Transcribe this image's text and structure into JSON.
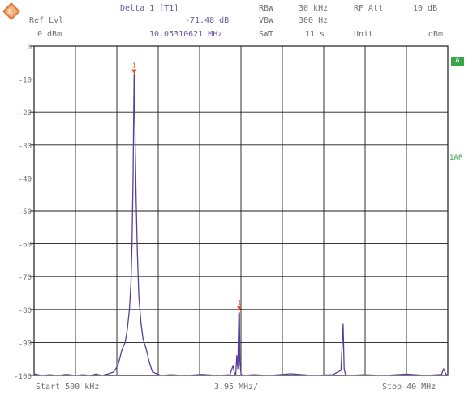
{
  "header": {
    "ref_lvl_label": "Ref Lvl",
    "ref_lvl_value": "0 dBm",
    "marker_title": "Delta 1 [T1]",
    "marker_level": "-71.48 dB",
    "marker_freq": "10.05310621 MHz",
    "rbw_label": "RBW",
    "rbw_value": "30 kHz",
    "vbw_label": "VBW",
    "vbw_value": "300 Hz",
    "swt_label": "SWT",
    "swt_value": "11 s",
    "rf_att_label": "RF Att",
    "rf_att_value": "10 dB",
    "unit_label": "Unit",
    "unit_value": "dBm"
  },
  "side_tags": {
    "trace_a": "A",
    "trace_mode": "1AP"
  },
  "footer": {
    "start": "Start 500 kHz",
    "span": "3.95 MHz/",
    "stop": "Stop 40 MHz"
  },
  "markers": [
    {
      "label": "1",
      "freq_mhz": 10.053,
      "level_db": -8.5
    },
    {
      "label": "1",
      "freq_mhz": 20.1,
      "level_db": -80.5
    }
  ],
  "chart_data": {
    "type": "line",
    "title": "",
    "xlabel": "",
    "ylabel": "",
    "xlim": [
      0.5,
      40
    ],
    "ylim": [
      -100,
      0
    ],
    "y_ticks": [
      "0",
      "-10",
      "-20",
      "-30",
      "-40",
      "-50",
      "-60",
      "-70",
      "-80",
      "-90",
      "-100"
    ],
    "grid": true,
    "colors": {
      "trace": "#5a3d9a",
      "marker": "#e05030",
      "grid": "#1a1a1a",
      "text": "#707070",
      "side_tag_bg": "#3aa64a"
    },
    "series": [
      {
        "x": [
          0.5,
          1.2,
          2.0,
          2.8,
          3.6,
          4.4,
          5.2,
          5.9,
          6.4,
          7.0,
          7.6,
          8.1,
          8.5,
          8.9,
          9.2,
          9.4,
          9.6,
          9.75,
          9.85,
          9.95,
          10.0,
          10.05,
          10.1,
          10.15,
          10.25,
          10.35,
          10.5,
          10.7,
          10.9,
          11.2,
          11.5,
          11.8,
          12.2,
          12.6,
          13.5,
          15.0,
          16.5,
          18.0,
          19.2,
          19.5,
          19.6,
          19.75,
          19.85,
          19.95,
          20.05,
          20.1,
          20.15,
          20.25,
          20.4,
          21.5,
          23.0,
          25.0,
          27.0,
          29.0,
          29.8,
          30.0,
          30.1,
          30.2,
          30.4,
          32.0,
          34.0,
          36.0,
          38.0,
          39.4,
          39.6,
          39.8,
          40.0
        ],
        "values": [
          -99.5,
          -100,
          -99.8,
          -100,
          -99.7,
          -100,
          -99.8,
          -100,
          -99.6,
          -100,
          -99.5,
          -99.0,
          -97.0,
          -92.0,
          -90.0,
          -86.0,
          -80.0,
          -72.0,
          -60.0,
          -40.0,
          -22.0,
          -8.5,
          -17.0,
          -30.0,
          -48.0,
          -62.0,
          -76.0,
          -84.0,
          -89.0,
          -92.0,
          -96.0,
          -99.0,
          -99.5,
          -100,
          -99.8,
          -100,
          -99.7,
          -100,
          -99.8,
          -97.0,
          -99.0,
          -100,
          -94.0,
          -98.0,
          -81.0,
          -81.0,
          -96.0,
          -99.5,
          -100,
          -99.8,
          -100,
          -99.5,
          -100,
          -99.8,
          -98.5,
          -84.5,
          -98.0,
          -99.5,
          -100,
          -99.8,
          -100,
          -99.6,
          -100,
          -99.7,
          -98.0,
          -99.5,
          -100
        ]
      }
    ]
  }
}
